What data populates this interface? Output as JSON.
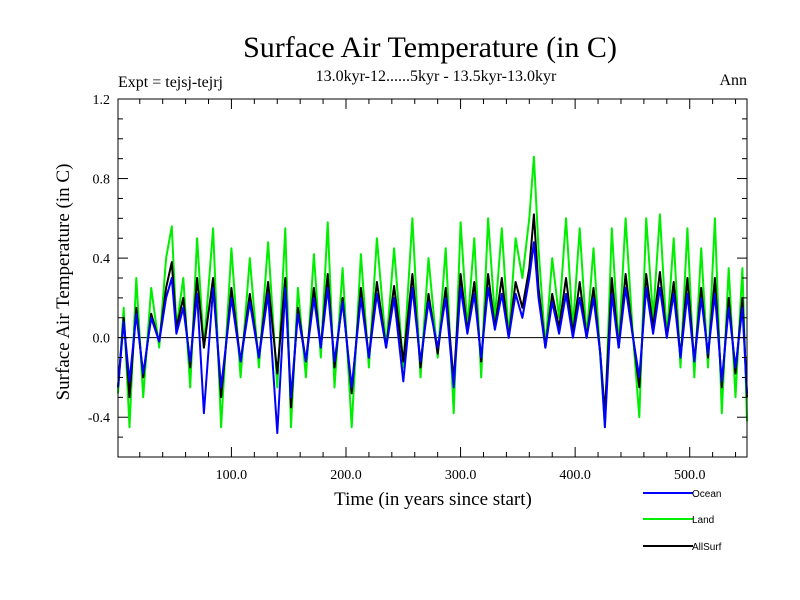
{
  "chart_data": {
    "type": "line",
    "title": "Surface Air Temperature (in C)",
    "subtitle": "13.0kyr-12......5kyr - 13.5kyr-13.0kyr",
    "expt_label": "Expt = tejsj-tejrj",
    "period_label": "Ann",
    "xlabel": "Time (in years since start)",
    "ylabel": "Surface Air Temperature (in C)",
    "xlim": [
      1,
      550
    ],
    "ylim": [
      -0.6,
      1.2
    ],
    "x_ticks": [
      100,
      200,
      300,
      400,
      500
    ],
    "x_tick_labels": [
      "100.0",
      "200.0",
      "300.0",
      "400.0",
      "500.0"
    ],
    "y_ticks": [
      -0.4,
      0.0,
      0.4,
      0.8,
      1.2
    ],
    "y_tick_labels": [
      "-0.4",
      "0.0",
      "0.4",
      "0.8",
      "1.2"
    ],
    "legend": [
      {
        "name": "Ocean",
        "color": "#0000ff"
      },
      {
        "name": "Land",
        "color": "#00ee00"
      },
      {
        "name": "AllSurf",
        "color": "#000000"
      }
    ],
    "series": [
      {
        "name": "Land",
        "color": "#00ee00",
        "x": [
          1,
          6,
          11,
          17,
          23,
          30,
          37,
          43,
          48,
          52,
          58,
          64,
          70,
          76,
          84,
          91,
          100,
          108,
          116,
          124,
          132,
          140,
          147,
          152,
          158,
          165,
          172,
          178,
          184,
          190,
          197,
          205,
          213,
          220,
          227,
          235,
          242,
          250,
          258,
          265,
          272,
          280,
          287,
          294,
          300,
          306,
          312,
          318,
          324,
          330,
          336,
          342,
          348,
          354,
          360,
          364,
          368,
          374,
          380,
          386,
          392,
          398,
          404,
          410,
          416,
          422,
          426,
          432,
          438,
          444,
          450,
          456,
          462,
          468,
          474,
          480,
          486,
          492,
          498,
          504,
          510,
          516,
          522,
          528,
          534,
          540,
          546,
          550
        ],
        "values": [
          -0.28,
          0.15,
          -0.45,
          0.3,
          -0.3,
          0.25,
          -0.05,
          0.4,
          0.56,
          0.05,
          0.3,
          -0.25,
          0.5,
          -0.05,
          0.55,
          -0.45,
          0.45,
          -0.2,
          0.4,
          -0.15,
          0.48,
          -0.25,
          0.55,
          -0.45,
          0.25,
          -0.2,
          0.42,
          -0.1,
          0.58,
          -0.25,
          0.35,
          -0.45,
          0.42,
          -0.15,
          0.5,
          -0.05,
          0.45,
          -0.15,
          0.6,
          -0.2,
          0.4,
          -0.1,
          0.45,
          -0.38,
          0.58,
          0.05,
          0.5,
          -0.2,
          0.6,
          0.1,
          0.55,
          0.0,
          0.5,
          0.3,
          0.6,
          0.91,
          0.45,
          -0.05,
          0.4,
          0.1,
          0.6,
          0.05,
          0.55,
          0.0,
          0.45,
          -0.1,
          -0.45,
          0.55,
          -0.05,
          0.6,
          0.05,
          -0.4,
          0.6,
          0.1,
          0.62,
          0.0,
          0.5,
          -0.15,
          0.55,
          -0.2,
          0.45,
          -0.15,
          0.6,
          -0.38,
          0.35,
          -0.3,
          0.35,
          -0.42
        ]
      },
      {
        "name": "AllSurf",
        "color": "#000000",
        "x": [
          1,
          6,
          11,
          17,
          23,
          30,
          37,
          43,
          48,
          52,
          58,
          64,
          70,
          76,
          84,
          91,
          100,
          108,
          116,
          124,
          132,
          140,
          147,
          152,
          158,
          165,
          172,
          178,
          184,
          190,
          197,
          205,
          213,
          220,
          227,
          235,
          242,
          250,
          258,
          265,
          272,
          280,
          287,
          294,
          300,
          306,
          312,
          318,
          324,
          330,
          336,
          342,
          348,
          354,
          360,
          364,
          368,
          374,
          380,
          386,
          392,
          398,
          404,
          410,
          416,
          422,
          426,
          432,
          438,
          444,
          450,
          456,
          462,
          468,
          474,
          480,
          486,
          492,
          498,
          504,
          510,
          516,
          522,
          528,
          534,
          540,
          546,
          550
        ],
        "values": [
          -0.25,
          0.1,
          -0.3,
          0.15,
          -0.2,
          0.12,
          -0.02,
          0.25,
          0.38,
          0.05,
          0.2,
          -0.15,
          0.3,
          -0.05,
          0.3,
          -0.3,
          0.25,
          -0.12,
          0.22,
          -0.1,
          0.28,
          -0.18,
          0.3,
          -0.35,
          0.15,
          -0.12,
          0.25,
          -0.05,
          0.32,
          -0.15,
          0.2,
          -0.28,
          0.25,
          -0.1,
          0.28,
          -0.05,
          0.26,
          -0.12,
          0.32,
          -0.15,
          0.22,
          -0.08,
          0.25,
          -0.22,
          0.32,
          0.03,
          0.28,
          -0.12,
          0.32,
          0.05,
          0.3,
          0.0,
          0.28,
          0.15,
          0.35,
          0.62,
          0.25,
          -0.05,
          0.22,
          0.05,
          0.3,
          0.02,
          0.28,
          0.0,
          0.25,
          -0.08,
          -0.38,
          0.3,
          -0.05,
          0.32,
          0.03,
          -0.25,
          0.32,
          0.05,
          0.33,
          0.0,
          0.28,
          -0.1,
          0.3,
          -0.12,
          0.25,
          -0.1,
          0.3,
          -0.25,
          0.2,
          -0.18,
          0.2,
          -0.3
        ]
      },
      {
        "name": "Ocean",
        "color": "#0000ff",
        "x": [
          1,
          6,
          11,
          17,
          23,
          30,
          37,
          43,
          48,
          52,
          58,
          64,
          70,
          76,
          84,
          91,
          100,
          108,
          116,
          124,
          132,
          140,
          147,
          152,
          158,
          165,
          172,
          178,
          184,
          190,
          197,
          205,
          213,
          220,
          227,
          235,
          242,
          250,
          258,
          265,
          272,
          280,
          287,
          294,
          300,
          306,
          312,
          318,
          324,
          330,
          336,
          342,
          348,
          354,
          360,
          364,
          368,
          374,
          380,
          386,
          392,
          398,
          404,
          410,
          416,
          422,
          426,
          432,
          438,
          444,
          450,
          456,
          462,
          468,
          474,
          480,
          486,
          492,
          498,
          504,
          510,
          516,
          522,
          528,
          534,
          540,
          546,
          550
        ],
        "values": [
          -0.25,
          0.08,
          -0.22,
          0.12,
          -0.18,
          0.1,
          -0.02,
          0.2,
          0.3,
          0.02,
          0.15,
          -0.12,
          0.22,
          -0.38,
          0.25,
          -0.25,
          0.2,
          -0.12,
          0.18,
          -0.1,
          0.22,
          -0.48,
          0.25,
          -0.3,
          0.12,
          -0.12,
          0.2,
          -0.05,
          0.25,
          -0.12,
          0.18,
          -0.25,
          0.2,
          -0.1,
          0.22,
          -0.05,
          0.2,
          -0.22,
          0.25,
          -0.12,
          0.18,
          -0.05,
          0.2,
          -0.25,
          0.25,
          0.02,
          0.22,
          -0.1,
          0.25,
          0.04,
          0.22,
          0.0,
          0.22,
          0.1,
          0.3,
          0.48,
          0.2,
          -0.05,
          0.18,
          0.02,
          0.22,
          0.0,
          0.2,
          0.0,
          0.2,
          -0.08,
          -0.45,
          0.22,
          -0.05,
          0.25,
          0.02,
          -0.2,
          0.25,
          0.02,
          0.25,
          0.0,
          0.22,
          -0.1,
          0.22,
          -0.12,
          0.2,
          -0.08,
          0.22,
          -0.22,
          0.15,
          -0.15,
          0.15,
          -0.28
        ]
      }
    ]
  }
}
